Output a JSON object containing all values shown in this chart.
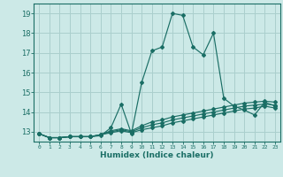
{
  "xlabel": "Humidex (Indice chaleur)",
  "background_color": "#cce9e7",
  "grid_color": "#aacfcd",
  "line_color": "#1a6e65",
  "x_values": [
    0,
    1,
    2,
    3,
    4,
    5,
    6,
    7,
    8,
    9,
    10,
    11,
    12,
    13,
    14,
    15,
    16,
    17,
    18,
    19,
    20,
    21,
    22,
    23
  ],
  "lines": [
    [
      12.9,
      12.7,
      12.7,
      12.75,
      12.75,
      12.75,
      12.8,
      13.2,
      14.4,
      12.9,
      15.5,
      17.1,
      17.3,
      19.0,
      18.9,
      17.3,
      16.9,
      18.0,
      14.7,
      14.3,
      14.1,
      13.85,
      14.5,
      14.3
    ],
    [
      12.9,
      12.7,
      12.7,
      12.75,
      12.75,
      12.75,
      12.85,
      13.05,
      13.15,
      13.05,
      13.3,
      13.5,
      13.6,
      13.75,
      13.85,
      13.95,
      14.05,
      14.15,
      14.25,
      14.35,
      14.45,
      14.5,
      14.55,
      14.5
    ],
    [
      12.9,
      12.7,
      12.7,
      12.75,
      12.75,
      12.75,
      12.85,
      13.0,
      13.1,
      13.0,
      13.2,
      13.35,
      13.45,
      13.6,
      13.7,
      13.8,
      13.9,
      14.0,
      14.1,
      14.2,
      14.3,
      14.35,
      14.4,
      14.35
    ],
    [
      12.9,
      12.7,
      12.7,
      12.75,
      12.75,
      12.75,
      12.85,
      12.95,
      13.05,
      12.95,
      13.1,
      13.2,
      13.3,
      13.45,
      13.55,
      13.65,
      13.75,
      13.85,
      13.95,
      14.05,
      14.15,
      14.2,
      14.3,
      14.2
    ]
  ],
  "ylim": [
    12.5,
    19.5
  ],
  "xlim": [
    -0.5,
    23.5
  ],
  "yticks": [
    13,
    14,
    15,
    16,
    17,
    18,
    19
  ],
  "xticks": [
    0,
    1,
    2,
    3,
    4,
    5,
    6,
    7,
    8,
    9,
    10,
    11,
    12,
    13,
    14,
    15,
    16,
    17,
    18,
    19,
    20,
    21,
    22,
    23
  ]
}
